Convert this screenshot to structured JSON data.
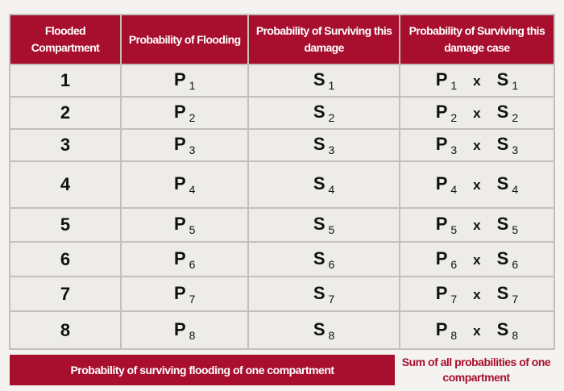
{
  "headers": [
    "Flooded Compartment",
    "Probability of Flooding",
    "Probability of Surviving this damage",
    "Probability of Surviving this damage case"
  ],
  "rows": [
    {
      "n": "1",
      "p": "P",
      "s": "S",
      "i": "1",
      "x": "x"
    },
    {
      "n": "2",
      "p": "P",
      "s": "S",
      "i": "2",
      "x": "x"
    },
    {
      "n": "3",
      "p": "P",
      "s": "S",
      "i": "3",
      "x": "x"
    },
    {
      "n": "4",
      "p": "P",
      "s": "S",
      "i": "4",
      "x": "x"
    },
    {
      "n": "5",
      "p": "P",
      "s": "S",
      "i": "5",
      "x": "x"
    },
    {
      "n": "6",
      "p": "P",
      "s": "S",
      "i": "6",
      "x": "x"
    },
    {
      "n": "7",
      "p": "P",
      "s": "S",
      "i": "7",
      "x": "x"
    },
    {
      "n": "8",
      "p": "P",
      "s": "S",
      "i": "8",
      "x": "x"
    }
  ],
  "footer": {
    "left": "Probability of surviving flooding of one compartment",
    "right": "Sum of all probabilities of one compartment"
  },
  "colors": {
    "accent": "#a80f2e",
    "cell": "#edece8"
  }
}
